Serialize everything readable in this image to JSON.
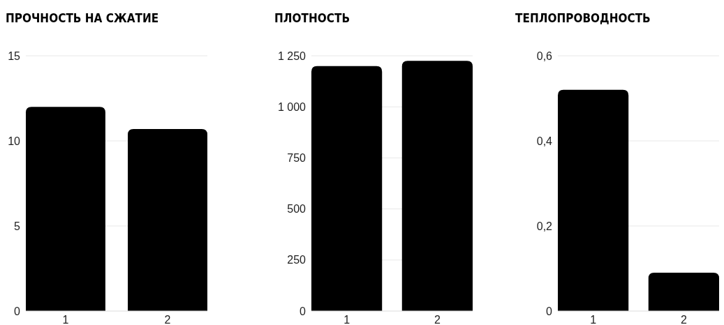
{
  "chart_data": [
    {
      "type": "bar",
      "title": "ПРОЧНОСТЬ НА СЖАТИЕ",
      "categories": [
        "1",
        "2"
      ],
      "values": [
        12,
        10.7
      ],
      "color": "#000000",
      "ylim": [
        0,
        15
      ],
      "yticks": [
        0,
        5,
        10,
        15
      ],
      "grid": "y"
    },
    {
      "type": "bar",
      "title": "ПЛОТНОСТЬ",
      "categories": [
        "1",
        "2"
      ],
      "values": [
        1200,
        1225
      ],
      "color": "#000000",
      "ylim": [
        0,
        1250
      ],
      "yticks": [
        0,
        250,
        500,
        750,
        {
          "value": 1000,
          "label": "1 000"
        },
        {
          "value": 1250,
          "label": "1 250"
        }
      ],
      "grid": "y"
    },
    {
      "type": "bar",
      "title": "ТЕПЛОПРОВОДНОСТЬ",
      "categories": [
        "1",
        "2"
      ],
      "values": [
        0.52,
        0.09
      ],
      "color": "#000000",
      "ylim": [
        0,
        0.6
      ],
      "yticks": [
        0,
        {
          "value": 0.2,
          "label": "0,2"
        },
        {
          "value": 0.4,
          "label": "0,4"
        },
        {
          "value": 0.6,
          "label": "0,6"
        }
      ],
      "grid": "y"
    }
  ]
}
